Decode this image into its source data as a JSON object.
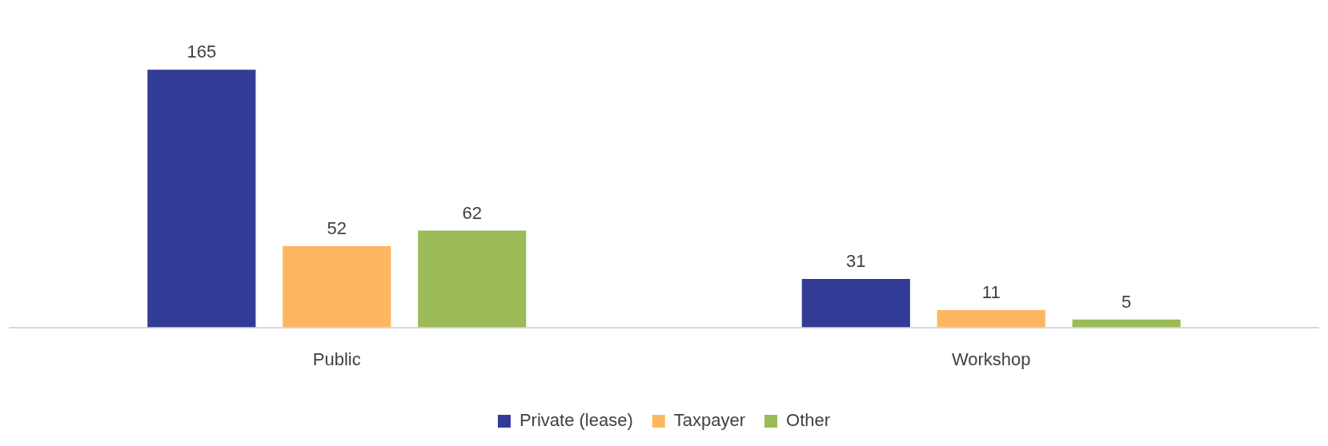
{
  "chart_data": {
    "type": "bar",
    "categories": [
      "Public",
      "Workshop"
    ],
    "series": [
      {
        "name": "Private (lease)",
        "color": "#323c96",
        "values": [
          165,
          31
        ]
      },
      {
        "name": "Taxpayer",
        "color": "#fdb760",
        "values": [
          52,
          11
        ]
      },
      {
        "name": "Other",
        "color": "#9bbb59",
        "values": [
          62,
          5
        ]
      }
    ],
    "data_labels": true,
    "legend": "bottom",
    "grid": false
  }
}
